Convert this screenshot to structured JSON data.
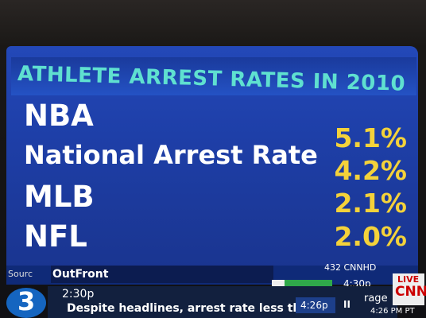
{
  "header": {
    "title": "ATHLETE ARREST RATES IN 2010"
  },
  "table": {
    "rows": [
      [
        "NBA",
        "5.1%"
      ],
      [
        "National Arrest Rate",
        "4.2%"
      ],
      [
        "MLB",
        "2.1%"
      ],
      [
        "NFL",
        "2.0%"
      ]
    ]
  },
  "footer": {
    "source": "Sourc",
    "show": "OutFront",
    "channel": "432 CNNHD",
    "next_time": "4:30p"
  },
  "ticker": {
    "time": "2:30p",
    "headline": "Despite headlines, arrest rate less thar",
    "clock": "4:26p",
    "pause": "II",
    "right_text": "rage",
    "pt_time": "4:26 PM PT"
  },
  "logos": {
    "channel_number": "3",
    "live": "LIVE",
    "network": "CNN"
  }
}
